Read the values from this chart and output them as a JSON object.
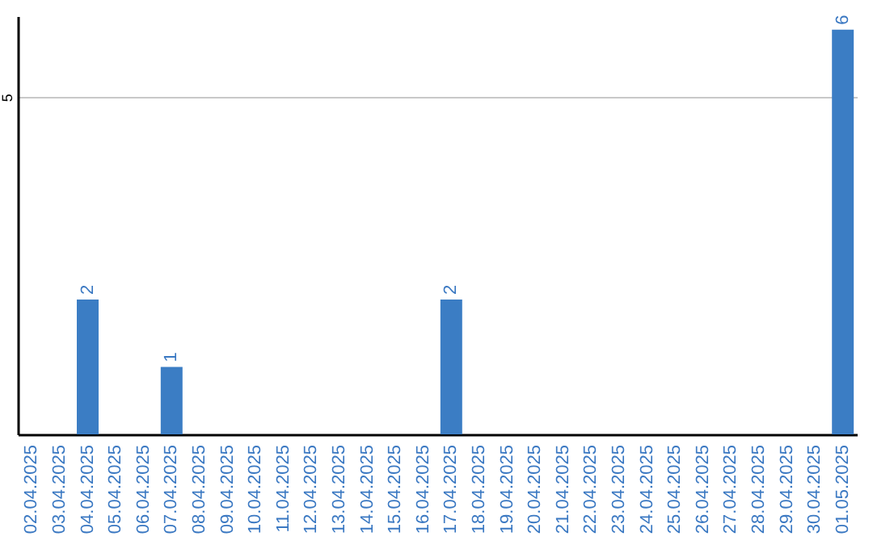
{
  "chart_data": {
    "type": "bar",
    "categories": [
      "02.04.2025",
      "03.04.2025",
      "04.04.2025",
      "05.04.2025",
      "06.04.2025",
      "07.04.2025",
      "08.04.2025",
      "09.04.2025",
      "10.04.2025",
      "11.04.2025",
      "12.04.2025",
      "13.04.2025",
      "14.04.2025",
      "15.04.2025",
      "16.04.2025",
      "17.04.2025",
      "18.04.2025",
      "19.04.2025",
      "20.04.2025",
      "21.04.2025",
      "22.04.2025",
      "23.04.2025",
      "24.04.2025",
      "25.04.2025",
      "26.04.2025",
      "27.04.2025",
      "28.04.2025",
      "29.04.2025",
      "30.04.2025",
      "01.05.2025"
    ],
    "values": [
      0,
      0,
      2,
      0,
      0,
      1,
      0,
      0,
      0,
      0,
      0,
      0,
      0,
      0,
      0,
      2,
      0,
      0,
      0,
      0,
      0,
      0,
      0,
      0,
      0,
      0,
      0,
      0,
      0,
      6
    ],
    "value_labels": [
      null,
      null,
      "2",
      null,
      null,
      "1",
      null,
      null,
      null,
      null,
      null,
      null,
      null,
      null,
      null,
      "2",
      null,
      null,
      null,
      null,
      null,
      null,
      null,
      null,
      null,
      null,
      null,
      null,
      null,
      "6"
    ],
    "color": "#3b7dc4",
    "ylim": [
      0,
      6.2
    ],
    "yticks": [
      5
    ],
    "grid": "y"
  }
}
